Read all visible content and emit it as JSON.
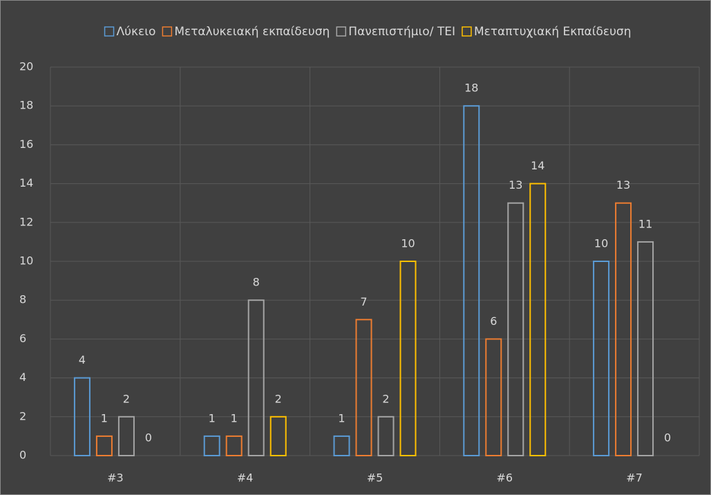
{
  "chart_data": {
    "type": "bar",
    "categories": [
      "#3",
      "#4",
      "#5",
      "#6",
      "#7"
    ],
    "series": [
      {
        "name": "Λύκειο",
        "color": "#5b9bd5",
        "values": [
          4,
          1,
          1,
          18,
          10
        ]
      },
      {
        "name": "Μεταλυκειακή εκπαίδευση",
        "color": "#ed7d31",
        "values": [
          1,
          1,
          7,
          6,
          13
        ]
      },
      {
        "name": "Πανεπιστήμιο/ ΤΕΙ",
        "color": "#a5a5a5",
        "values": [
          2,
          8,
          2,
          13,
          11
        ]
      },
      {
        "name": "Μεταπτυχιακή Εκπαίδευση",
        "color": "#ffc000",
        "values": [
          0,
          2,
          10,
          14,
          0
        ]
      }
    ],
    "ylim": [
      0,
      20
    ],
    "yticks": [
      0,
      2,
      4,
      6,
      8,
      10,
      12,
      14,
      16,
      18,
      20
    ],
    "grid": true,
    "legend": "top"
  }
}
